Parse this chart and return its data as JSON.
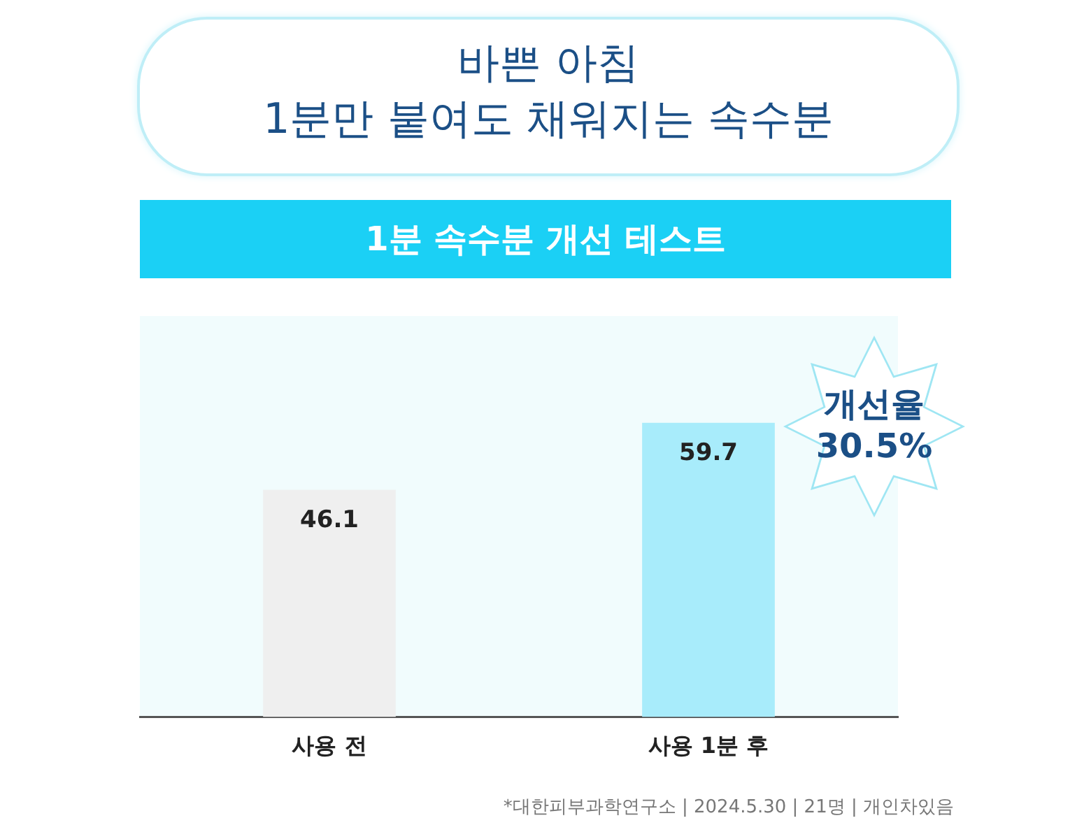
{
  "chart_data": {
    "type": "bar",
    "title": "바쁜 아침\n1분만 붙여도 채워지는 속수분",
    "subtitle": "1분 속수분 개선 테스트",
    "categories": [
      "사용 전",
      "사용 1분 후"
    ],
    "values": [
      46.1,
      59.7
    ],
    "colors": [
      "#efefef",
      "#a8ecfb"
    ],
    "data_labels": true,
    "annotations": [
      "개선율 30.5%",
      "*대한피부과학연구소 | 2024.5.30 | 21명 | 개인차있음"
    ]
  }
}
